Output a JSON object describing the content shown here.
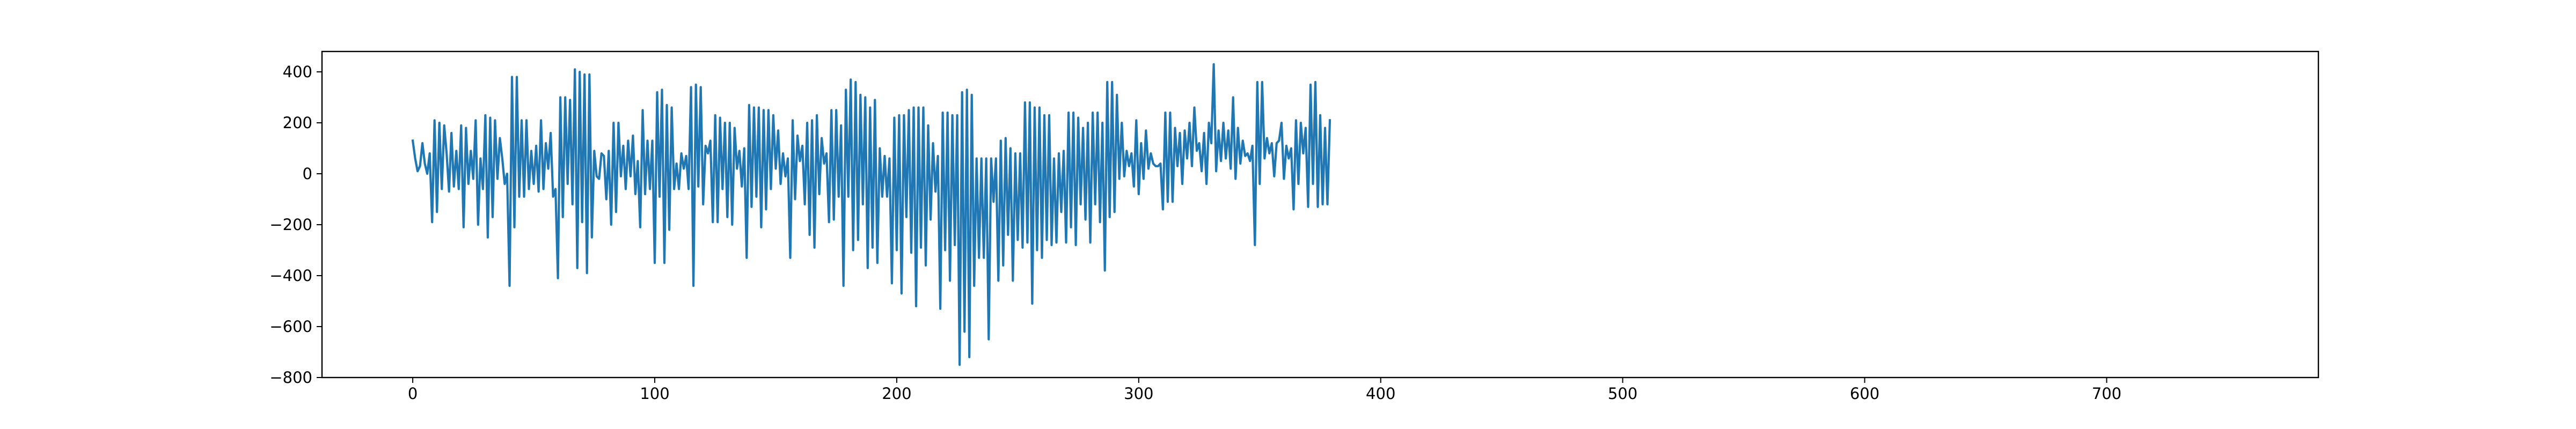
{
  "chart_data": {
    "type": "line",
    "title": "",
    "xlabel": "",
    "ylabel": "",
    "xlim": [
      -37.5,
      787.5
    ],
    "ylim": [
      -800,
      480
    ],
    "grid": false,
    "legend": "none",
    "x_ticks": [
      0,
      100,
      200,
      300,
      400,
      500,
      600,
      700
    ],
    "y_ticks": [
      -800,
      -600,
      -400,
      -200,
      0,
      200,
      400
    ],
    "x_tick_labels": [
      "0",
      "100",
      "200",
      "300",
      "400",
      "500",
      "600",
      "700"
    ],
    "y_tick_labels": [
      "−800",
      "−600",
      "−400",
      "−200",
      "0",
      "200",
      "400"
    ],
    "series": [
      {
        "color": "#1f77b4",
        "x_start": 0,
        "x_step": 1,
        "values": [
          130,
          60,
          10,
          30,
          120,
          40,
          0,
          80,
          -190,
          210,
          -150,
          200,
          -60,
          190,
          80,
          -70,
          160,
          -50,
          90,
          -60,
          190,
          -210,
          180,
          -40,
          90,
          -20,
          210,
          -200,
          60,
          -60,
          230,
          -250,
          220,
          -170,
          210,
          -20,
          140,
          60,
          -40,
          0,
          -440,
          380,
          -210,
          380,
          -90,
          210,
          -90,
          210,
          -60,
          90,
          -40,
          110,
          -70,
          210,
          -60,
          120,
          20,
          160,
          -90,
          -60,
          -410,
          300,
          -170,
          300,
          -40,
          290,
          -120,
          410,
          -370,
          400,
          -190,
          390,
          -390,
          390,
          -250,
          90,
          -10,
          -20,
          80,
          70,
          -100,
          90,
          -200,
          200,
          -150,
          200,
          -10,
          110,
          -60,
          130,
          -10,
          150,
          -80,
          50,
          -210,
          250,
          -80,
          130,
          -60,
          130,
          -350,
          320,
          -90,
          330,
          -350,
          270,
          -220,
          260,
          -60,
          40,
          -60,
          80,
          20,
          70,
          -60,
          340,
          -440,
          350,
          -50,
          340,
          -120,
          110,
          80,
          130,
          -190,
          230,
          -190,
          220,
          -60,
          200,
          -170,
          200,
          -200,
          180,
          20,
          90,
          -50,
          100,
          -330,
          270,
          -130,
          260,
          -90,
          260,
          -210,
          250,
          -140,
          250,
          -60,
          230,
          20,
          170,
          -40,
          80,
          -10,
          60,
          -330,
          210,
          -100,
          150,
          50,
          110,
          -120,
          200,
          -240,
          210,
          -290,
          230,
          -80,
          140,
          40,
          80,
          -190,
          250,
          -180,
          250,
          -90,
          190,
          -440,
          330,
          -90,
          370,
          -300,
          360,
          -260,
          310,
          -120,
          300,
          -370,
          260,
          -290,
          290,
          -350,
          100,
          -90,
          70,
          -90,
          60,
          -430,
          220,
          -300,
          230,
          -470,
          230,
          -170,
          250,
          -310,
          260,
          -520,
          260,
          -290,
          260,
          -360,
          190,
          -180,
          120,
          -70,
          70,
          -530,
          240,
          -300,
          240,
          -420,
          230,
          -280,
          230,
          -750,
          320,
          -620,
          330,
          -720,
          310,
          -440,
          60,
          -330,
          60,
          -330,
          60,
          -650,
          60,
          -110,
          60,
          -420,
          130,
          -360,
          140,
          -240,
          100,
          -420,
          80,
          -260,
          80,
          -290,
          280,
          -270,
          280,
          -510,
          260,
          -300,
          260,
          -330,
          230,
          -260,
          230,
          -280,
          60,
          -270,
          80,
          -150,
          90,
          -270,
          240,
          -210,
          240,
          -280,
          220,
          -120,
          180,
          -180,
          200,
          -270,
          240,
          -120,
          240,
          -190,
          200,
          -380,
          360,
          -170,
          360,
          -150,
          310,
          -20,
          200,
          -10,
          90,
          30,
          80,
          -50,
          210,
          -80,
          120,
          -20,
          170,
          20,
          80,
          40,
          30,
          30,
          40,
          -140,
          240,
          -110,
          240,
          -110,
          180,
          30,
          160,
          -40,
          170,
          60,
          200,
          30,
          260,
          90,
          120,
          10,
          160,
          -40,
          200,
          120,
          430,
          10,
          170,
          50,
          200,
          60,
          170,
          20,
          300,
          -20,
          180,
          40,
          130,
          70,
          80,
          50,
          110,
          -280,
          360,
          -40,
          360,
          60,
          140,
          80,
          120,
          -10,
          120,
          130,
          200,
          -20,
          110,
          60,
          100,
          -140,
          210,
          -40,
          200,
          80,
          180,
          -130,
          350,
          -40,
          360,
          -130,
          230,
          -120,
          180,
          -120,
          210
        ]
      }
    ]
  }
}
